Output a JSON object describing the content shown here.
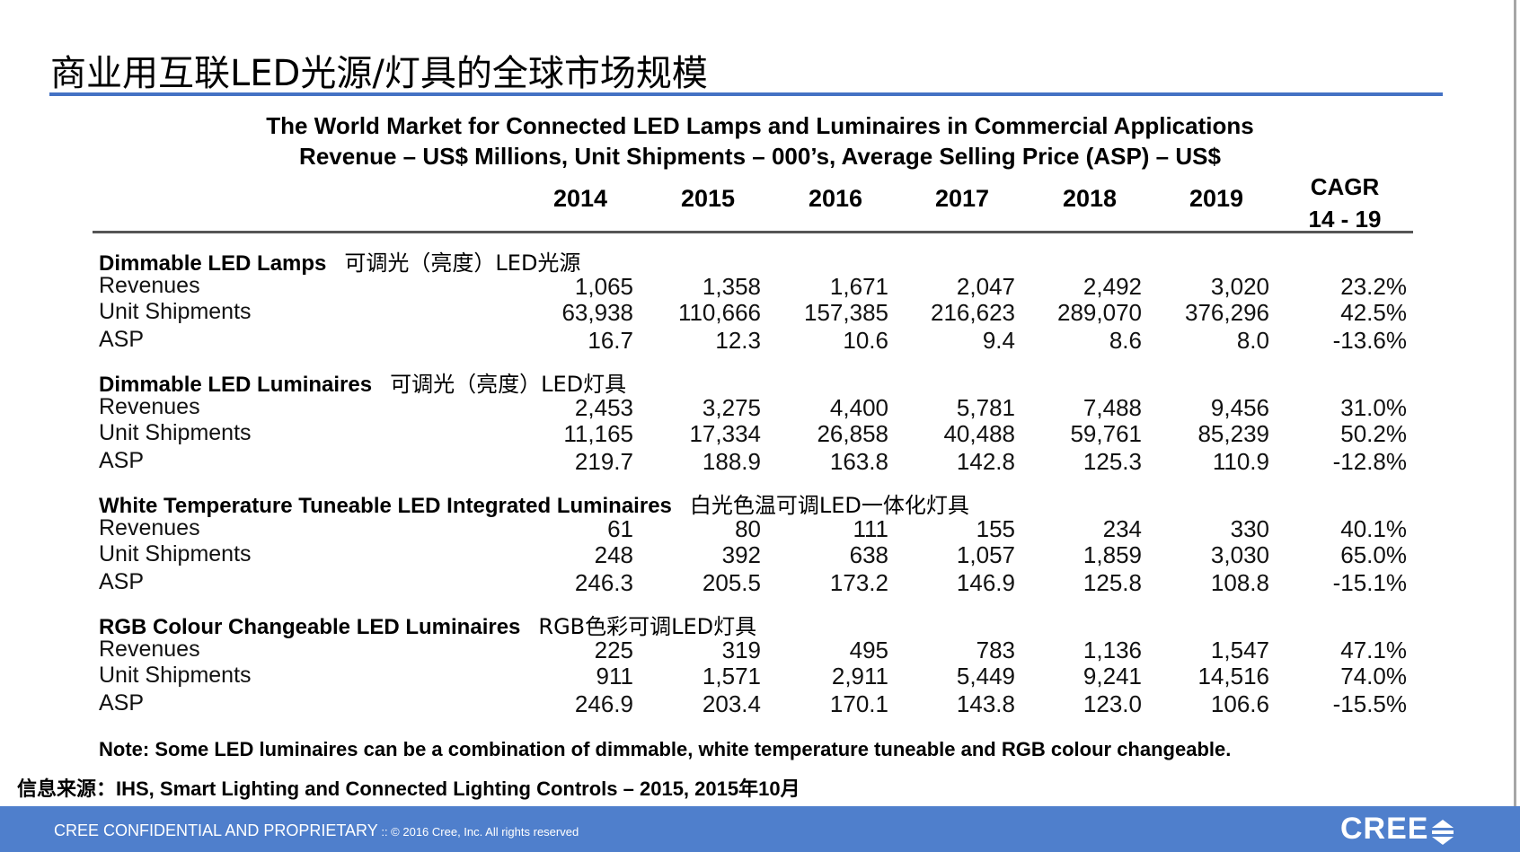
{
  "slide_title": "商业用互联LED光源/灯具的全球市场规模",
  "table_title_1": "The World Market for Connected LED Lamps and Luminaires in Commercial Applications",
  "table_title_2": "Revenue – US$ Millions, Unit Shipments – 000’s, Average Selling Price (ASP) – US$",
  "years": [
    "2014",
    "2015",
    "2016",
    "2017",
    "2018",
    "2019"
  ],
  "cagr_header_1": "CAGR",
  "cagr_header_2": "14 - 19",
  "sections": [
    {
      "title": "Dimmable LED Lamps",
      "title_cn": "可调光（亮度）LED光源",
      "rows": [
        {
          "label": "Revenues",
          "values": [
            "1,065",
            "1,358",
            "1,671",
            "2,047",
            "2,492",
            "3,020"
          ],
          "cagr": "23.2%"
        },
        {
          "label": "Unit Shipments",
          "values": [
            "63,938",
            "110,666",
            "157,385",
            "216,623",
            "289,070",
            "376,296"
          ],
          "cagr": "42.5%"
        },
        {
          "label": "ASP",
          "values": [
            "16.7",
            "12.3",
            "10.6",
            "9.4",
            "8.6",
            "8.0"
          ],
          "cagr": "-13.6%"
        }
      ]
    },
    {
      "title": "Dimmable LED Luminaires",
      "title_cn": "可调光（亮度）LED灯具",
      "rows": [
        {
          "label": "Revenues",
          "values": [
            "2,453",
            "3,275",
            "4,400",
            "5,781",
            "7,488",
            "9,456"
          ],
          "cagr": "31.0%"
        },
        {
          "label": "Unit Shipments",
          "values": [
            "11,165",
            "17,334",
            "26,858",
            "40,488",
            "59,761",
            "85,239"
          ],
          "cagr": "50.2%"
        },
        {
          "label": "ASP",
          "values": [
            "219.7",
            "188.9",
            "163.8",
            "142.8",
            "125.3",
            "110.9"
          ],
          "cagr": "-12.8%"
        }
      ]
    },
    {
      "title": "White Temperature Tuneable LED Integrated Luminaires",
      "title_cn": "白光色温可调LED一体化灯具",
      "rows": [
        {
          "label": "Revenues",
          "values": [
            "61",
            "80",
            "111",
            "155",
            "234",
            "330"
          ],
          "cagr": "40.1%"
        },
        {
          "label": "Unit Shipments",
          "values": [
            "248",
            "392",
            "638",
            "1,057",
            "1,859",
            "3,030"
          ],
          "cagr": "65.0%"
        },
        {
          "label": "ASP",
          "values": [
            "246.3",
            "205.5",
            "173.2",
            "146.9",
            "125.8",
            "108.8"
          ],
          "cagr": "-15.1%"
        }
      ]
    },
    {
      "title": "RGB Colour Changeable LED Luminaires",
      "title_cn": "RGB色彩可调LED灯具",
      "rows": [
        {
          "label": "Revenues",
          "values": [
            "225",
            "319",
            "495",
            "783",
            "1,136",
            "1,547"
          ],
          "cagr": "47.1%"
        },
        {
          "label": "Unit Shipments",
          "values": [
            "911",
            "1,571",
            "2,911",
            "5,449",
            "9,241",
            "14,516"
          ],
          "cagr": "74.0%"
        },
        {
          "label": "ASP",
          "values": [
            "246.9",
            "203.4",
            "170.1",
            "143.8",
            "123.0",
            "106.6"
          ],
          "cagr": "-15.5%"
        }
      ]
    }
  ],
  "note": "Note: Some LED luminaires can be a combination of dimmable, white temperature tuneable and RGB colour changeable.",
  "source": "信息来源：IHS, Smart Lighting and Connected Lighting Controls – 2015,  2015年10月",
  "footer": {
    "text": "CREE CONFIDENTIAL AND PROPRIETARY",
    "copyright": " :: © 2016 Cree, Inc. All rights reserved",
    "logo": "CREE"
  },
  "colors": {
    "accent_rule": "#4472c4",
    "footer_bar": "#4f7fcc"
  }
}
